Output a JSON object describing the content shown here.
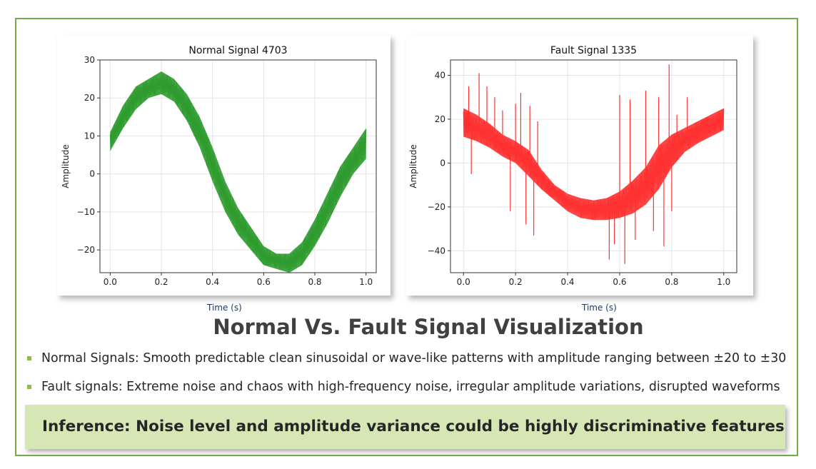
{
  "title": "Normal Vs. Fault Signal Visualization",
  "bullets": [
    "Normal Signals: Smooth predictable clean sinusoidal or wave-like patterns with amplitude ranging  between ±20 to ±30",
    "Fault signals: Extreme noise and chaos with high-frequency noise, irregular amplitude variations, disrupted waveforms"
  ],
  "inference": "Inference: Noise level and amplitude variance could be highly discriminative features",
  "colors": {
    "frame": "#70ad47",
    "normal_series": "#2e9b2e",
    "fault_series": "#ff3030",
    "inference_bg": "#d6e7b5"
  },
  "chart_data": [
    {
      "type": "line",
      "title": "Normal Signal 4703",
      "xlabel": "Time (s)",
      "ylabel": "Amplitude",
      "xlim": [
        -0.04,
        1.04
      ],
      "ylim": [
        -26,
        30
      ],
      "xticks": [
        0.0,
        0.2,
        0.4,
        0.6,
        0.8,
        1.0
      ],
      "xtick_labels": [
        "0.0",
        "0.2",
        "0.4",
        "0.6",
        "0.8",
        "1.0"
      ],
      "yticks": [
        -20,
        -10,
        0,
        10,
        20,
        30
      ],
      "ytick_labels": [
        "−20",
        "−10",
        "0",
        "10",
        "20",
        "30"
      ],
      "grid": true,
      "color": "#2e9b2e",
      "series": [
        {
          "x": [
            0.0,
            0.05,
            0.1,
            0.15,
            0.2,
            0.25,
            0.3,
            0.35,
            0.4,
            0.45,
            0.5,
            0.55,
            0.6,
            0.65,
            0.7,
            0.75,
            0.8,
            0.85,
            0.9,
            0.95,
            1.0
          ],
          "upper": [
            11,
            18,
            23,
            25,
            27,
            25,
            21,
            15,
            7,
            -2,
            -9,
            -14,
            -19,
            -21,
            -21,
            -18,
            -12,
            -5,
            2,
            7,
            12
          ],
          "lower": [
            6,
            12,
            17,
            20,
            21,
            19,
            14,
            7,
            -2,
            -10,
            -16,
            -20,
            -24,
            -25,
            -26,
            -24,
            -19,
            -13,
            -6,
            0,
            4
          ]
        }
      ]
    },
    {
      "type": "line",
      "title": "Fault Signal 1335",
      "xlabel": "Time (s)",
      "ylabel": "Amplitude",
      "xlim": [
        -0.05,
        1.05
      ],
      "ylim": [
        -50,
        47
      ],
      "xticks": [
        0.0,
        0.2,
        0.4,
        0.6,
        0.8,
        1.0
      ],
      "xtick_labels": [
        "0.0",
        "0.2",
        "0.4",
        "0.6",
        "0.8",
        "1.0"
      ],
      "yticks": [
        -40,
        -20,
        0,
        20,
        40
      ],
      "ytick_labels": [
        "−40",
        "−20",
        "0",
        "20",
        "40"
      ],
      "grid": true,
      "color": "#ff3030",
      "series": [
        {
          "x": [
            0.0,
            0.05,
            0.1,
            0.15,
            0.2,
            0.25,
            0.3,
            0.35,
            0.4,
            0.45,
            0.5,
            0.55,
            0.6,
            0.65,
            0.7,
            0.75,
            0.8,
            0.85,
            0.9,
            0.95,
            1.0
          ],
          "upper": [
            25,
            22,
            18,
            13,
            10,
            6,
            -3,
            -10,
            -14,
            -16,
            -17,
            -16,
            -13,
            -8,
            -2,
            8,
            13,
            16,
            19,
            22,
            25
          ],
          "lower": [
            12,
            10,
            7,
            3,
            0,
            -6,
            -12,
            -17,
            -22,
            -25,
            -26,
            -26,
            -25,
            -23,
            -19,
            -12,
            -2,
            5,
            9,
            12,
            15
          ],
          "spikes": [
            [
              0.02,
              35
            ],
            [
              0.03,
              -5
            ],
            [
              0.06,
              41
            ],
            [
              0.09,
              35
            ],
            [
              0.12,
              30
            ],
            [
              0.15,
              24
            ],
            [
              0.18,
              -22
            ],
            [
              0.2,
              27
            ],
            [
              0.22,
              32
            ],
            [
              0.24,
              -28
            ],
            [
              0.255,
              26
            ],
            [
              0.27,
              -33
            ],
            [
              0.285,
              19
            ],
            [
              0.56,
              -44
            ],
            [
              0.58,
              -37
            ],
            [
              0.6,
              31
            ],
            [
              0.62,
              -46
            ],
            [
              0.64,
              29
            ],
            [
              0.66,
              -35
            ],
            [
              0.7,
              33
            ],
            [
              0.73,
              -31
            ],
            [
              0.75,
              30
            ],
            [
              0.77,
              -38
            ],
            [
              0.79,
              45
            ],
            [
              0.8,
              -22
            ],
            [
              0.82,
              22
            ],
            [
              0.86,
              30
            ]
          ]
        }
      ]
    }
  ]
}
